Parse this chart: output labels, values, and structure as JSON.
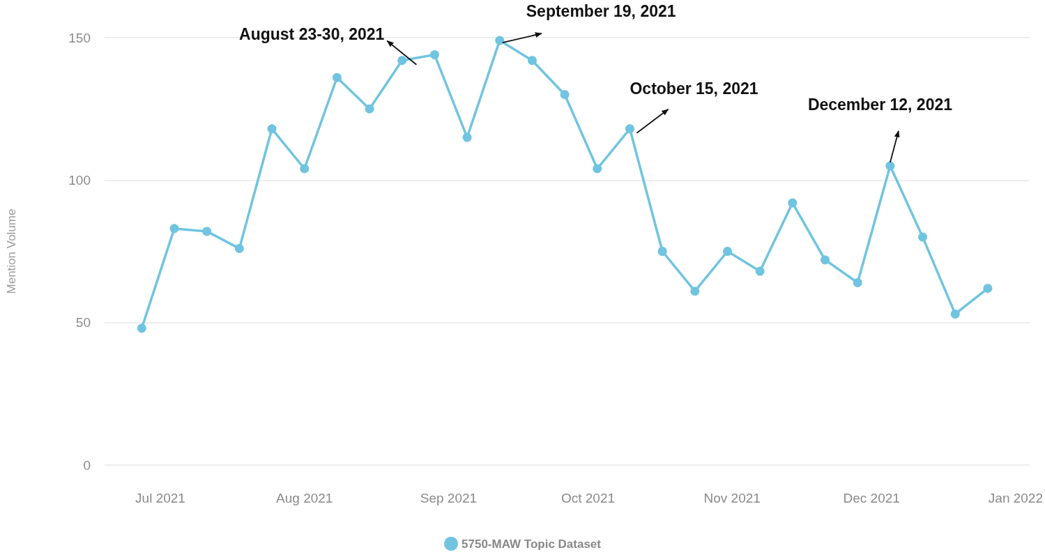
{
  "chart_data": {
    "type": "line",
    "ylabel": "Mention Volume",
    "x": [
      "2021-06-27",
      "2021-07-04",
      "2021-07-11",
      "2021-07-18",
      "2021-07-25",
      "2021-08-01",
      "2021-08-08",
      "2021-08-15",
      "2021-08-22",
      "2021-08-29",
      "2021-09-05",
      "2021-09-12",
      "2021-09-19",
      "2021-09-26",
      "2021-10-03",
      "2021-10-10",
      "2021-10-17",
      "2021-10-24",
      "2021-10-31",
      "2021-11-07",
      "2021-11-14",
      "2021-11-21",
      "2021-11-28",
      "2021-12-05",
      "2021-12-12",
      "2021-12-19",
      "2021-12-26"
    ],
    "series": [
      {
        "name": "5750-MAW Topic Dataset",
        "color": "#70c4e0",
        "values": [
          48,
          83,
          82,
          76,
          118,
          104,
          136,
          125,
          142,
          144,
          115,
          149,
          142,
          130,
          104,
          118,
          75,
          61,
          75,
          68,
          92,
          72,
          64,
          105,
          80,
          53,
          62
        ]
      }
    ],
    "xlim": [
      "2021-06-19",
      "2022-01-04"
    ],
    "xticks": [
      {
        "value": "2021-07-01",
        "label": "Jul 2021"
      },
      {
        "value": "2021-08-01",
        "label": "Aug 2021"
      },
      {
        "value": "2021-09-01",
        "label": "Sep 2021"
      },
      {
        "value": "2021-10-01",
        "label": "Oct 2021"
      },
      {
        "value": "2021-11-01",
        "label": "Nov 2021"
      },
      {
        "value": "2021-12-01",
        "label": "Dec 2021"
      },
      {
        "value": "2022-01-01",
        "label": "Jan 2022"
      }
    ],
    "ylim": [
      0,
      150
    ],
    "yticks": [
      0,
      50,
      100,
      150
    ],
    "grid": "y",
    "legend": "bottom",
    "marker": "circle",
    "line_style": "solid",
    "annotations": [
      {
        "text": "August 23-30, 2021",
        "x": "2021-08-26",
        "y": 142
      },
      {
        "text": "September 19, 2021",
        "x": "2021-09-12",
        "y": 149
      },
      {
        "text": "October 15, 2021",
        "x": "2021-10-10",
        "y": 118
      },
      {
        "text": "December 12, 2021",
        "x": "2021-12-05",
        "y": 105
      }
    ]
  }
}
